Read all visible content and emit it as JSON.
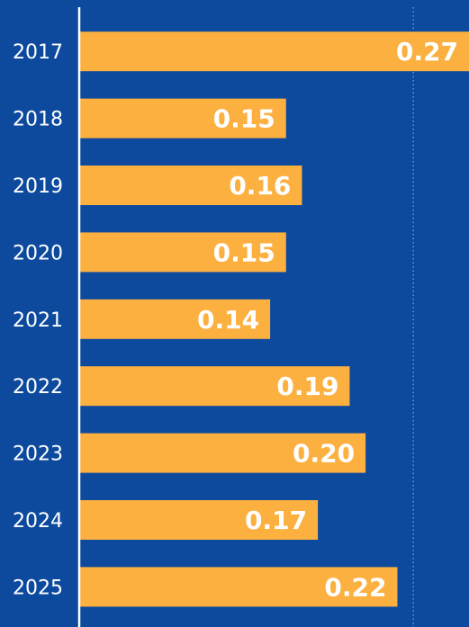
{
  "chart_data": {
    "type": "bar",
    "orientation": "horizontal",
    "categories": [
      "2017",
      "2018",
      "2019",
      "2020",
      "2021",
      "2022",
      "2023",
      "2024",
      "2025"
    ],
    "values": [
      0.27,
      0.15,
      0.16,
      0.15,
      0.14,
      0.19,
      0.2,
      0.17,
      0.22
    ],
    "value_labels": [
      "0.27",
      "0.15",
      "0.16",
      "0.15",
      "0.14",
      "0.19",
      "0.20",
      "0.17",
      "0.22"
    ],
    "color": "#fbb040",
    "background": "#0d4a9e",
    "xlim": [
      0.02,
      0.265
    ],
    "reference_line": 0.23
  }
}
